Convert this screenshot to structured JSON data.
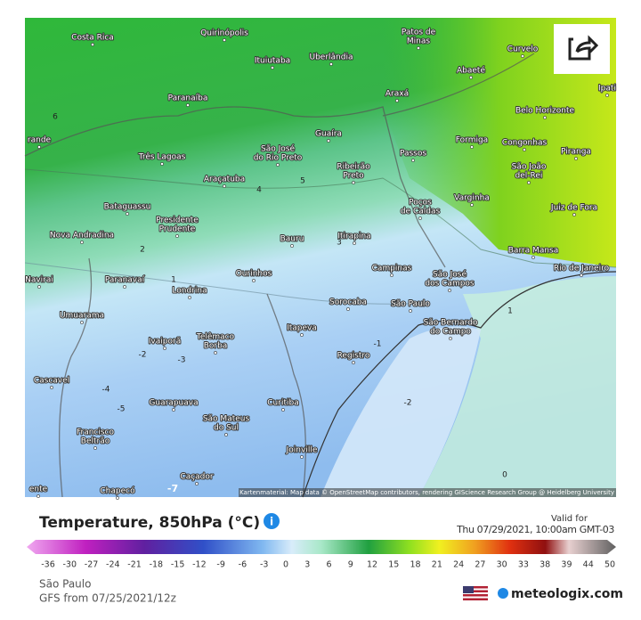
{
  "title": "Temperature, 850hPa (°C)",
  "valid_label": "Valid for",
  "valid_time": "Thu 07/29/2021, 10:00am GMT-03",
  "location": "São Paulo",
  "model_run": "GFS from 07/25/2021/12z",
  "brand": "meteologix.com",
  "attribution": "Kartenmaterial: Map data © OpenStreetMap contributors, rendering GIScience Research Group @ Heidelberg University",
  "legend_labels": [
    -36,
    -30,
    -27,
    -24,
    -21,
    -18,
    -15,
    -12,
    -9,
    -6,
    -3,
    0,
    3,
    6,
    9,
    12,
    15,
    18,
    21,
    24,
    27,
    30,
    33,
    38,
    39,
    44,
    50
  ],
  "cities": [
    {
      "lines": [
        "Costa Rica"
      ]
    },
    {
      "lines": [
        "Quirinópolis"
      ]
    },
    {
      "lines": [
        "Patos de",
        "Minas"
      ]
    },
    {
      "lines": [
        "Curvelo"
      ]
    },
    {
      "lines": [
        "Ituiutaba"
      ]
    },
    {
      "lines": [
        "Uberlândia"
      ]
    },
    {
      "lines": [
        "Abaeté"
      ]
    },
    {
      "lines": [
        "Paranaíba"
      ]
    },
    {
      "lines": [
        "Araxá"
      ]
    },
    {
      "lines": [
        "Ipati"
      ]
    },
    {
      "lines": [
        "Belo Horizonte"
      ]
    },
    {
      "lines": [
        "rande"
      ]
    },
    {
      "lines": [
        "Guaíra"
      ]
    },
    {
      "lines": [
        "São José",
        "do Rio Preto"
      ]
    },
    {
      "lines": [
        "Formiga"
      ]
    },
    {
      "lines": [
        "Congonhas"
      ]
    },
    {
      "lines": [
        "Passos"
      ]
    },
    {
      "lines": [
        "Piranga"
      ]
    },
    {
      "lines": [
        "Três Lagoas"
      ]
    },
    {
      "lines": [
        "Ribeirão",
        "Preto"
      ]
    },
    {
      "lines": [
        "São João",
        "del-Rei"
      ]
    },
    {
      "lines": [
        "Araçatuba"
      ]
    },
    {
      "lines": [
        "Varginha"
      ]
    },
    {
      "lines": [
        "Bataguassu"
      ]
    },
    {
      "lines": [
        "Poços",
        "de Caldas"
      ]
    },
    {
      "lines": [
        "Juiz de Fora"
      ]
    },
    {
      "lines": [
        "Presidente",
        "Prudente"
      ]
    },
    {
      "lines": [
        "Nova Andradina"
      ]
    },
    {
      "lines": [
        "Bauru"
      ]
    },
    {
      "lines": [
        "Itirapina"
      ]
    },
    {
      "lines": [
        "Barra Mansa"
      ]
    },
    {
      "lines": [
        "Campinas"
      ]
    },
    {
      "lines": [
        "São José",
        "dos Campos"
      ]
    },
    {
      "lines": [
        "Rio de Janeiro"
      ]
    },
    {
      "lines": [
        "Ourinhos"
      ]
    },
    {
      "lines": [
        "Paranavaí"
      ]
    },
    {
      "lines": [
        "Navirai"
      ]
    },
    {
      "lines": [
        "Londrina"
      ]
    },
    {
      "lines": [
        "Sorocaba"
      ]
    },
    {
      "lines": [
        "São Paulo"
      ]
    },
    {
      "lines": [
        "São Bernardo",
        "do Campo"
      ]
    },
    {
      "lines": [
        "Umuarama"
      ]
    },
    {
      "lines": [
        "Itapeva"
      ]
    },
    {
      "lines": [
        "Ivaiporã"
      ]
    },
    {
      "lines": [
        "Telêmaco",
        "Borba"
      ]
    },
    {
      "lines": [
        "Registro"
      ]
    },
    {
      "lines": [
        "Cascavel"
      ]
    },
    {
      "lines": [
        "Guarapuava"
      ]
    },
    {
      "lines": [
        "Curitiba"
      ]
    },
    {
      "lines": [
        "São Mateus",
        "do Sul"
      ]
    },
    {
      "lines": [
        "Francisco",
        "Beltrão"
      ]
    },
    {
      "lines": [
        "Joinville"
      ]
    },
    {
      "lines": [
        "Caçador"
      ]
    },
    {
      "lines": [
        "Chapecó"
      ]
    },
    {
      "lines": [
        "ente"
      ]
    }
  ],
  "isotherm_labels": [
    6,
    5,
    4,
    3,
    2,
    1,
    1,
    -1,
    -2,
    -3,
    -4,
    -5,
    -2,
    -7,
    0
  ]
}
